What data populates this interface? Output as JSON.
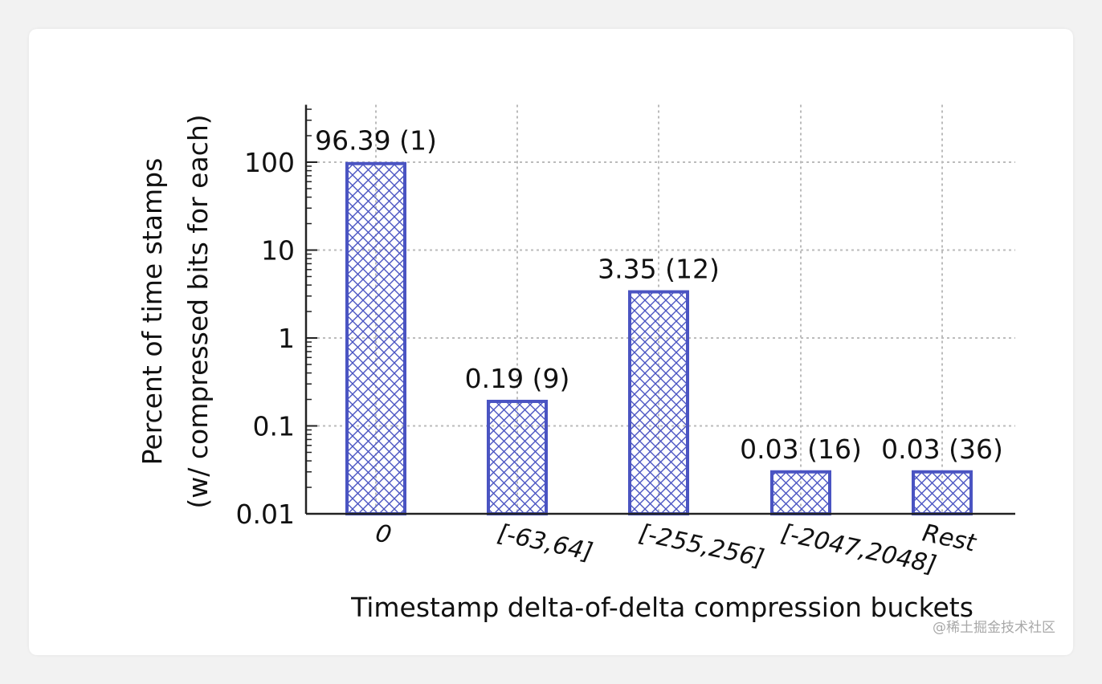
{
  "chart_data": {
    "type": "bar",
    "scale": "log",
    "title": "",
    "xlabel": "Timestamp delta-of-delta compression buckets",
    "ylabel_lines": [
      "Percent of time stamps",
      "(w/ compressed bits for each)"
    ],
    "categories": [
      "0",
      "[-63,64]",
      "[-255,256]",
      "[-2047,2048]",
      "Rest"
    ],
    "values": [
      96.39,
      0.19,
      3.35,
      0.03,
      0.03
    ],
    "data_labels": [
      "96.39 (1)",
      "0.19 (9)",
      "3.35 (12)",
      "0.03 (16)",
      "0.03 (36)"
    ],
    "yticks": [
      0.01,
      0.1,
      1,
      10,
      100
    ],
    "ytick_labels": [
      "0.01",
      "0.1",
      "1",
      "10",
      "100"
    ],
    "ylim": [
      0.01,
      450
    ],
    "grid": true,
    "colors": {
      "bar_stroke": "#4a54c2",
      "grid": "#bbbbbb",
      "axis": "#222222"
    }
  },
  "watermark": "@稀土掘金技术社区"
}
